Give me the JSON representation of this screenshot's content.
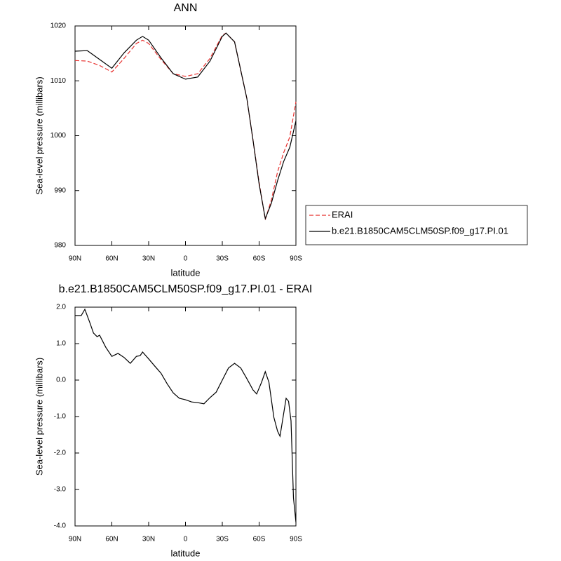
{
  "chart_data": [
    {
      "type": "line",
      "title": "ANN",
      "x_label": "latitude",
      "y_label": "Sea-level pressure (millibars)",
      "x": [
        90,
        80,
        70,
        60,
        50,
        40,
        35,
        30,
        20,
        10,
        0,
        -10,
        -20,
        -30,
        -33,
        -40,
        -50,
        -55,
        -60,
        -65,
        -70,
        -75,
        -80,
        -85,
        -90
      ],
      "xlim": [
        90,
        -90
      ],
      "xticks": [
        {
          "value": 90,
          "label": "90N"
        },
        {
          "value": 60,
          "label": "60N"
        },
        {
          "value": 30,
          "label": "30N"
        },
        0,
        {
          "value": -30,
          "label": "30S"
        },
        {
          "value": -60,
          "label": "60S"
        },
        {
          "value": -90,
          "label": "90S"
        }
      ],
      "ylim": [
        980,
        1020
      ],
      "yticks": [
        980,
        990,
        1000,
        1010,
        1020
      ],
      "legend": "right",
      "series": [
        {
          "name": "ERAI",
          "color": "#e8312f",
          "style": "dashed",
          "values": [
            1013.7,
            1013.6,
            1012.8,
            1011.6,
            1014.1,
            1016.8,
            1017.4,
            1016.8,
            1013.9,
            1011.3,
            1010.8,
            1011.3,
            1014.1,
            1018.3,
            1018.7,
            1017.1,
            1006.8,
            999.2,
            991.5,
            984.7,
            988.3,
            993.4,
            996.9,
            999.8,
            1006.2
          ]
        },
        {
          "name": "b.e21.B1850CAM5CLM50SP.f09_g17.PI.01",
          "color": "#000000",
          "style": "solid",
          "values": [
            1015.4,
            1015.5,
            1013.9,
            1012.3,
            1015.1,
            1017.4,
            1018.1,
            1017.4,
            1014.2,
            1011.3,
            1010.3,
            1010.7,
            1013.6,
            1018.1,
            1018.7,
            1017.1,
            1006.8,
            999.2,
            991.2,
            984.9,
            987.7,
            991.8,
            995.3,
            997.9,
            1002.7
          ]
        }
      ]
    },
    {
      "type": "line",
      "title": "b.e21.B1850CAM5CLM50SP.f09_g17.PI.01 - ERAI",
      "x_label": "latitude",
      "y_label": "Sea-level pressure (millibars)",
      "x": [
        90,
        85,
        82,
        78,
        75,
        72,
        70,
        65,
        60,
        55,
        50,
        45,
        40,
        37,
        35,
        30,
        25,
        20,
        15,
        10,
        5,
        0,
        -5,
        -10,
        -15,
        -20,
        -25,
        -30,
        -35,
        -40,
        -45,
        -50,
        -55,
        -58,
        -62,
        -65,
        -68,
        -72,
        -75,
        -77,
        -80,
        -82,
        -84,
        -86,
        -88,
        -90
      ],
      "xlim": [
        90,
        -90
      ],
      "xticks": [
        {
          "value": 90,
          "label": "90N"
        },
        {
          "value": 60,
          "label": "60N"
        },
        {
          "value": 30,
          "label": "30N"
        },
        0,
        {
          "value": -30,
          "label": "30S"
        },
        {
          "value": -60,
          "label": "60S"
        },
        {
          "value": -90,
          "label": "90S"
        }
      ],
      "ylim": [
        -4,
        2
      ],
      "yticks": [
        {
          "value": -4,
          "label": "-4.0"
        },
        {
          "value": -3,
          "label": "-3.0"
        },
        {
          "value": -2,
          "label": "-2.0"
        },
        {
          "value": -1,
          "label": "-1.0"
        },
        {
          "value": 0,
          "label": "0.0"
        },
        {
          "value": 1,
          "label": "1.0"
        },
        {
          "value": 2,
          "label": "2.0"
        }
      ],
      "series": [
        {
          "color": "#000000",
          "style": "solid",
          "values": [
            1.77,
            1.77,
            1.94,
            1.58,
            1.29,
            1.19,
            1.23,
            0.9,
            0.65,
            0.73,
            0.62,
            0.46,
            0.65,
            0.67,
            0.77,
            0.58,
            0.38,
            0.19,
            -0.1,
            -0.35,
            -0.5,
            -0.54,
            -0.6,
            -0.62,
            -0.65,
            -0.48,
            -0.33,
            0,
            0.33,
            0.46,
            0.33,
            0.04,
            -0.27,
            -0.38,
            -0.06,
            0.23,
            -0.06,
            -1.02,
            -1.4,
            -1.54,
            -0.92,
            -0.5,
            -0.58,
            -1.12,
            -3.23,
            -3.9
          ]
        }
      ]
    }
  ]
}
